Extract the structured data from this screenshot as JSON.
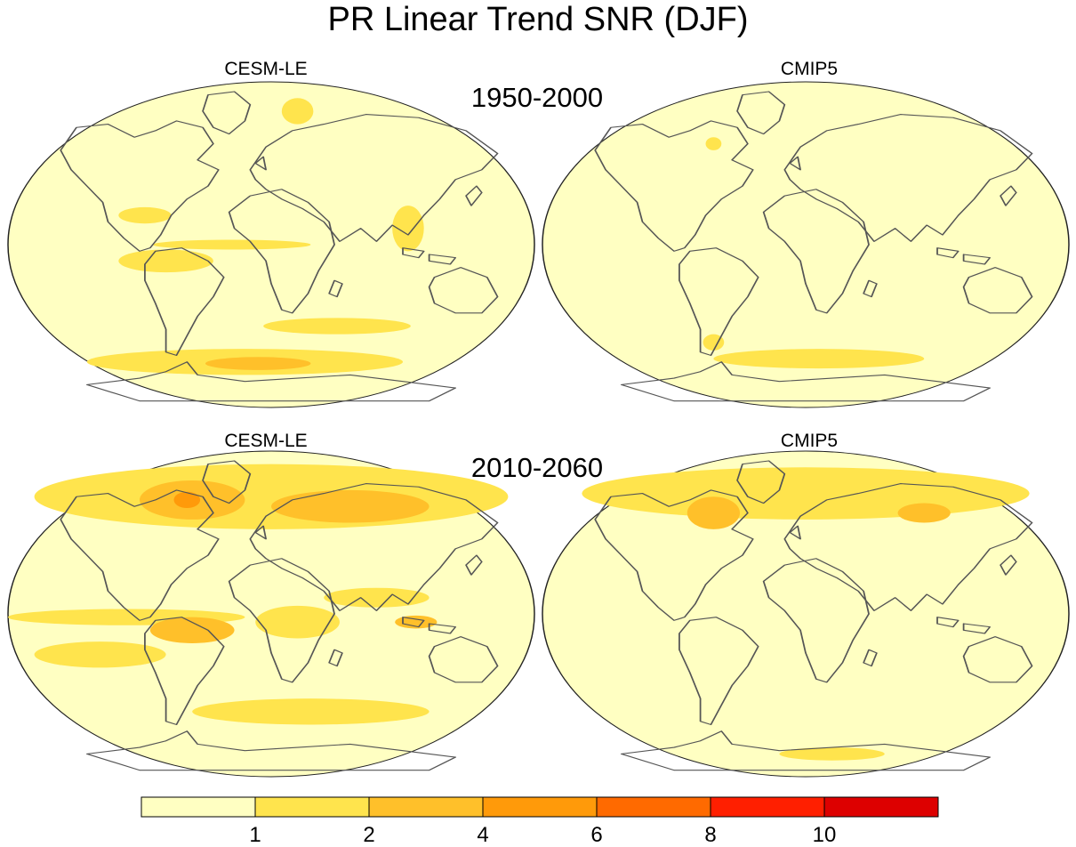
{
  "title": "PR Linear Trend SNR (DJF)",
  "period_labels": [
    "1950-2000",
    "2010-2060"
  ],
  "panels": [
    {
      "model": "CESM-LE",
      "period": "1950-2000"
    },
    {
      "model": "CMIP5",
      "period": "1950-2000"
    },
    {
      "model": "CESM-LE",
      "period": "2010-2060"
    },
    {
      "model": "CMIP5",
      "period": "2010-2060"
    }
  ],
  "map": {
    "projection": "Robinson",
    "extent": {
      "lon": [
        -180,
        180
      ],
      "lat": [
        -90,
        90
      ]
    },
    "coastline_color": "#555555"
  },
  "colorbar": {
    "orientation": "horizontal",
    "tick_labels": [
      "1",
      "2",
      "4",
      "6",
      "8",
      "10"
    ],
    "bins": [
      {
        "range": "<1",
        "color": "#FFFFC2"
      },
      {
        "range": "1-2",
        "color": "#FFE44D"
      },
      {
        "range": "2-4",
        "color": "#FFC02A"
      },
      {
        "range": "4-6",
        "color": "#FF9A0A"
      },
      {
        "range": "6-8",
        "color": "#FF6A00"
      },
      {
        "range": "8-10",
        "color": "#FF1F00"
      },
      {
        "range": ">10",
        "color": "#DD0000"
      }
    ]
  }
}
